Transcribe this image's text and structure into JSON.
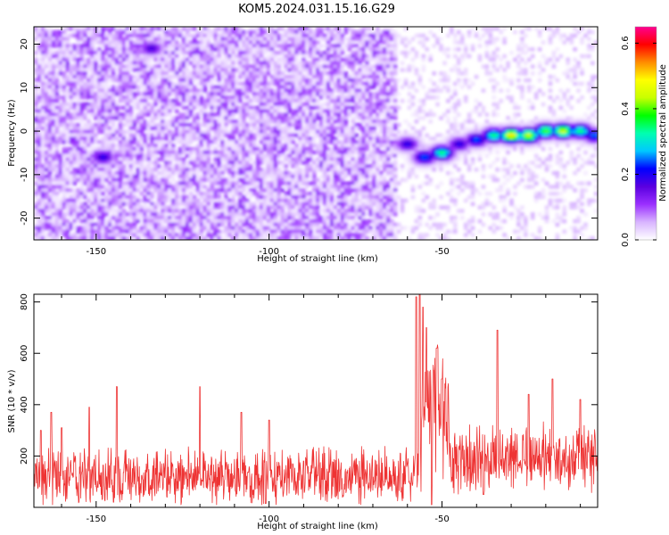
{
  "title": "KOM5.2024.031.15.16.G29",
  "chart_data": [
    {
      "type": "heatmap",
      "xlabel": "Height of straight line (km)",
      "ylabel": "Frequency (Hz)",
      "xlim": [
        -168,
        -5
      ],
      "ylim": [
        -25,
        24
      ],
      "x_ticks": [
        -150,
        -100,
        -50
      ],
      "y_ticks": [
        -20,
        -10,
        0,
        10,
        20
      ],
      "colorbar": {
        "label": "Normalized spectral amplitude",
        "range": [
          0.0,
          0.65
        ],
        "ticks": [
          0.0,
          0.2,
          0.4,
          0.6
        ],
        "colors": [
          "#ffffff",
          "#d8b4ff",
          "#9b30ff",
          "#5a00e0",
          "#0000ff",
          "#00c8ff",
          "#00ffb0",
          "#00ff00",
          "#c8ff00",
          "#ffff00",
          "#ff8c00",
          "#ff0000",
          "#ff0090"
        ]
      },
      "noise_region": {
        "x_range": [
          -168,
          -63
        ],
        "level": 0.1
      },
      "sparse_region": {
        "x_range": [
          -63,
          -5
        ],
        "level": 0.03
      },
      "feature_points": [
        {
          "x": -148,
          "y": -6,
          "v": 0.2
        },
        {
          "x": -134,
          "y": 19,
          "v": 0.18
        },
        {
          "x": -60,
          "y": -3,
          "v": 0.2
        },
        {
          "x": -55,
          "y": -6,
          "v": 0.25
        },
        {
          "x": -50,
          "y": -5,
          "v": 0.35
        },
        {
          "x": -45,
          "y": -3,
          "v": 0.2
        },
        {
          "x": -40,
          "y": -2,
          "v": 0.25
        },
        {
          "x": -35,
          "y": -1,
          "v": 0.35
        },
        {
          "x": -30,
          "y": -1,
          "v": 0.5
        },
        {
          "x": -25,
          "y": -1,
          "v": 0.45
        },
        {
          "x": -20,
          "y": 0,
          "v": 0.4
        },
        {
          "x": -15,
          "y": 0,
          "v": 0.45
        },
        {
          "x": -10,
          "y": 0,
          "v": 0.35
        },
        {
          "x": -6,
          "y": -1,
          "v": 0.25
        }
      ]
    },
    {
      "type": "line",
      "xlabel": "Height of straight line (km)",
      "ylabel": "SNR (10 * v/v)",
      "xlim": [
        -168,
        -5
      ],
      "ylim": [
        0,
        830
      ],
      "x_ticks": [
        -150,
        -100,
        -50
      ],
      "y_ticks": [
        200,
        400,
        600,
        800
      ],
      "color": "#ee3333",
      "noise": [
        {
          "from": -168,
          "to": -57,
          "base": 120,
          "amp": 130
        },
        {
          "from": -57,
          "to": -48,
          "base": 380,
          "amp": 350
        },
        {
          "from": -48,
          "to": -5,
          "base": 190,
          "amp": 150
        }
      ],
      "peaks": [
        {
          "x": -166,
          "y": 300
        },
        {
          "x": -163,
          "y": 370
        },
        {
          "x": -160,
          "y": 310
        },
        {
          "x": -152,
          "y": 390
        },
        {
          "x": -144,
          "y": 470
        },
        {
          "x": -120,
          "y": 470
        },
        {
          "x": -108,
          "y": 370
        },
        {
          "x": -100,
          "y": 340
        },
        {
          "x": -57.5,
          "y": 820
        },
        {
          "x": -56.5,
          "y": 830
        },
        {
          "x": -55.5,
          "y": 780
        },
        {
          "x": -54.5,
          "y": 700
        },
        {
          "x": -53,
          "y": 790
        },
        {
          "x": -51.5,
          "y": 620
        },
        {
          "x": -50,
          "y": 500
        },
        {
          "x": -34,
          "y": 690
        },
        {
          "x": -25,
          "y": 440
        },
        {
          "x": -18,
          "y": 500
        },
        {
          "x": -10,
          "y": 420
        }
      ],
      "dips": [
        {
          "x": -145,
          "y": 20
        },
        {
          "x": -101,
          "y": 15
        },
        {
          "x": -53,
          "y": 5
        },
        {
          "x": -38,
          "y": 50
        }
      ]
    }
  ]
}
